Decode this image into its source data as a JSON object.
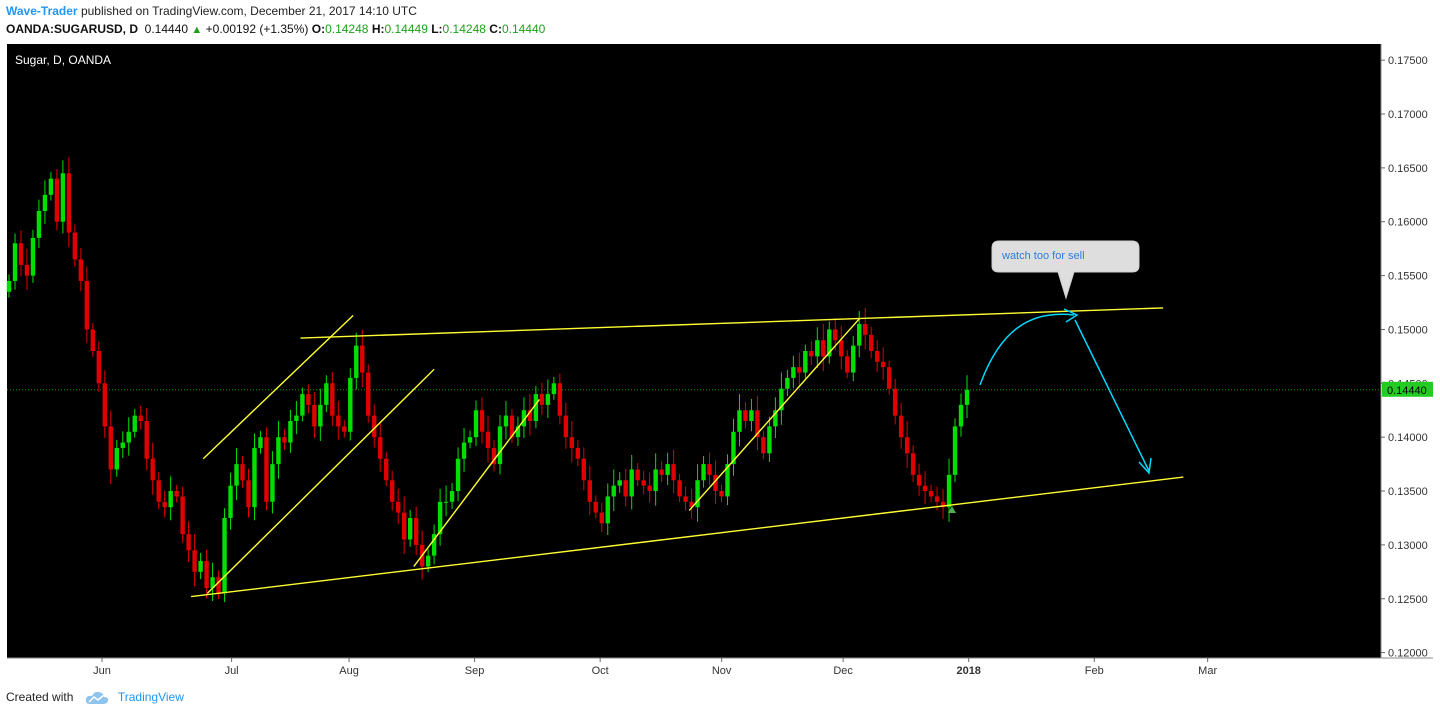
{
  "header": {
    "author": "Wave-Trader",
    "published_text": "published on TradingView.com, December 21, 2017 14:10 UTC",
    "symbol": "OANDA:SUGARUSD, D",
    "last": "0.14440",
    "change": "+0.00192 (+1.35%)",
    "o_label": "O:",
    "o_value": "0.14248",
    "h_label": "H:",
    "h_value": "0.14449",
    "l_label": "L:",
    "l_value": "0.14248",
    "c_label": "C:",
    "c_value": "0.14440"
  },
  "footer": {
    "created_with": "Created with",
    "brand": "TradingView"
  },
  "colors": {
    "background": "#000000",
    "up": "#00e000",
    "down": "#e00000",
    "trend": "#ffff33",
    "arrow": "#00d8ff",
    "price_line": "#00a000",
    "accent": "#2196f3"
  },
  "chart_data": {
    "type": "candlestick",
    "title": "Sugar, D, OANDA",
    "ylim": [
      0.1195,
      0.1765
    ],
    "y_ticks": [
      "0.17500",
      "0.17000",
      "0.16500",
      "0.16000",
      "0.15500",
      "0.15000",
      "0.14500",
      "0.14000",
      "0.13500",
      "0.13000",
      "0.12500",
      "0.12000"
    ],
    "x_ticks": [
      {
        "label": "Jun",
        "date": "2017-06-01"
      },
      {
        "label": "Jul",
        "date": "2017-07-03"
      },
      {
        "label": "Aug",
        "date": "2017-08-01"
      },
      {
        "label": "Sep",
        "date": "2017-09-01"
      },
      {
        "label": "Oct",
        "date": "2017-10-02"
      },
      {
        "label": "Nov",
        "date": "2017-11-01"
      },
      {
        "label": "Dec",
        "date": "2017-12-01"
      },
      {
        "label": "2018",
        "date": "2018-01-01"
      },
      {
        "label": "Feb",
        "date": "2018-02-01"
      },
      {
        "label": "Mar",
        "date": "2018-03-01"
      }
    ],
    "current_price": {
      "value": 0.1444,
      "label": "0.14440"
    },
    "closes_start_open": 0.1535,
    "closes": [
      0.1545,
      0.158,
      0.156,
      0.155,
      0.1585,
      0.161,
      0.1625,
      0.164,
      0.16,
      0.1645,
      0.159,
      0.1565,
      0.1545,
      0.15,
      0.148,
      0.145,
      0.141,
      0.137,
      0.139,
      0.1395,
      0.1405,
      0.142,
      0.1415,
      0.138,
      0.136,
      0.134,
      0.1335,
      0.135,
      0.1345,
      0.131,
      0.1295,
      0.1275,
      0.1285,
      0.126,
      0.127,
      0.1255,
      0.1325,
      0.1355,
      0.1375,
      0.136,
      0.1335,
      0.139,
      0.14,
      0.134,
      0.1375,
      0.14,
      0.1395,
      0.1415,
      0.142,
      0.144,
      0.143,
      0.141,
      0.143,
      0.145,
      0.142,
      0.141,
      0.1405,
      0.1455,
      0.1485,
      0.146,
      0.142,
      0.14,
      0.138,
      0.136,
      0.134,
      0.133,
      0.1305,
      0.1325,
      0.13,
      0.128,
      0.129,
      0.131,
      0.134,
      0.134,
      0.135,
      0.138,
      0.1395,
      0.14,
      0.1425,
      0.1405,
      0.139,
      0.1375,
      0.141,
      0.142,
      0.14,
      0.141,
      0.1425,
      0.1415,
      0.144,
      0.143,
      0.144,
      0.145,
      0.142,
      0.14,
      0.139,
      0.138,
      0.136,
      0.134,
      0.133,
      0.132,
      0.1345,
      0.1355,
      0.136,
      0.1345,
      0.137,
      0.136,
      0.1355,
      0.135,
      0.137,
      0.1365,
      0.1375,
      0.136,
      0.1345,
      0.134,
      0.1335,
      0.136,
      0.1375,
      0.1365,
      0.135,
      0.1345,
      0.1375,
      0.1405,
      0.1425,
      0.1415,
      0.1425,
      0.14,
      0.1385,
      0.141,
      0.1425,
      0.1445,
      0.1455,
      0.1465,
      0.146,
      0.148,
      0.1475,
      0.149,
      0.1475,
      0.15,
      0.149,
      0.1475,
      0.146,
      0.1485,
      0.1505,
      0.1495,
      0.148,
      0.147,
      0.1465,
      0.1445,
      0.142,
      0.14,
      0.1385,
      0.1365,
      0.1355,
      0.135,
      0.1345,
      0.134,
      0.1335,
      0.1365,
      0.141,
      0.143,
      0.1444
    ],
    "channel_lines": [
      {
        "from": [
          "2017-06-23",
          0.1252
        ],
        "to": [
          "2018-02-23",
          0.1363
        ]
      },
      {
        "from": [
          "2017-07-20",
          0.1492
        ],
        "to": [
          "2018-02-18",
          0.152
        ]
      },
      {
        "from": [
          "2017-06-26",
          0.138
        ],
        "to": [
          "2017-08-02",
          0.1513
        ]
      },
      {
        "from": [
          "2017-06-27",
          0.1255
        ],
        "to": [
          "2017-08-22",
          0.1463
        ]
      },
      {
        "from": [
          "2017-08-17",
          0.128
        ],
        "to": [
          "2017-09-17",
          0.1435
        ]
      },
      {
        "from": [
          "2017-10-24",
          0.1332
        ],
        "to": [
          "2017-12-05",
          0.151
        ]
      }
    ],
    "annotation": {
      "text": "watch too for sell"
    }
  }
}
